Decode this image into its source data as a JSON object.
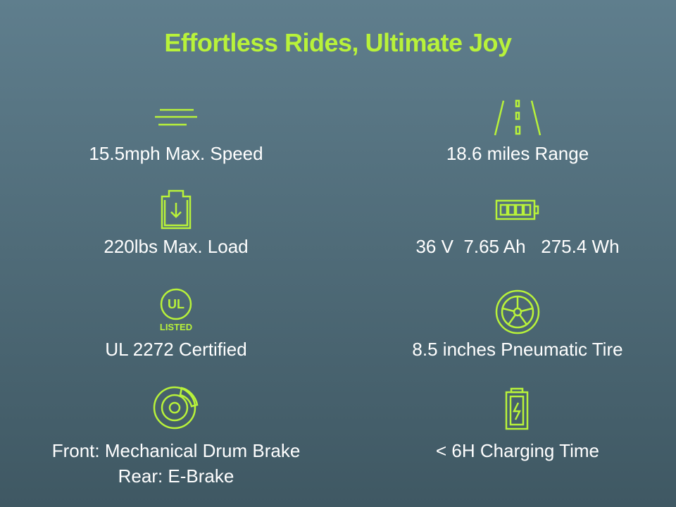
{
  "title": "Effortless Rides, Ultimate Joy",
  "features": [
    {
      "label": "15.5mph Max. Speed"
    },
    {
      "label": "18.6 miles Range"
    },
    {
      "label": "220lbs Max. Load"
    },
    {
      "label": "36 V  7.65 Ah   275.4 Wh"
    },
    {
      "label": "UL 2272 Certified",
      "badge": "LISTED"
    },
    {
      "label": "8.5 inches Pneumatic Tire"
    },
    {
      "label": "Front: Mechanical Drum Brake",
      "label2": "Rear: E-Brake"
    },
    {
      "label": "< 6H Charging Time"
    }
  ]
}
